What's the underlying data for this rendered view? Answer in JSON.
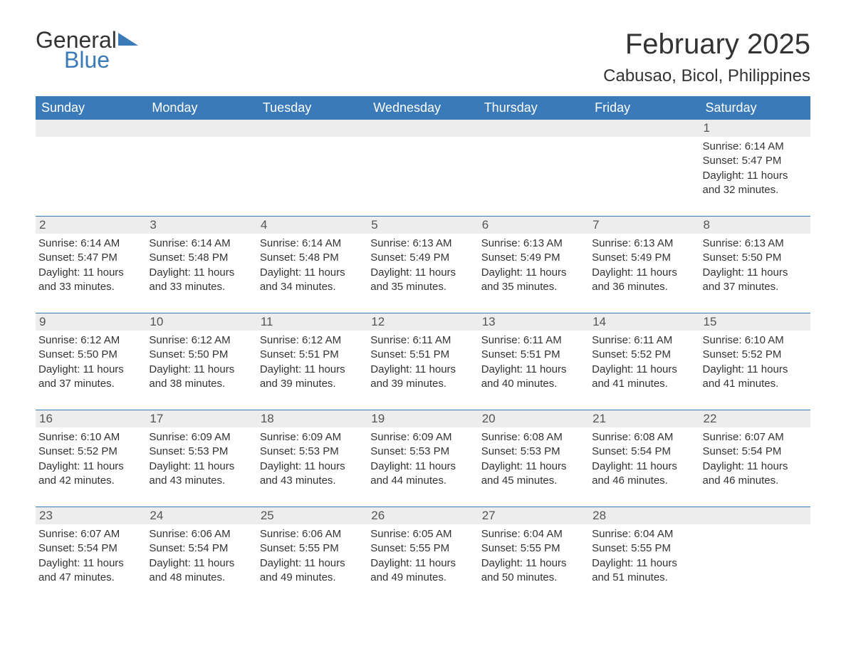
{
  "logo": {
    "line1": "General",
    "line2": "Blue"
  },
  "title": "February 2025",
  "location": "Cabusao, Bicol, Philippines",
  "colors": {
    "header_band": "#3b7ab8",
    "day_band": "#ededed",
    "text": "#333333",
    "background": "#ffffff"
  },
  "weekdays": [
    "Sunday",
    "Monday",
    "Tuesday",
    "Wednesday",
    "Thursday",
    "Friday",
    "Saturday"
  ],
  "weeks": [
    [
      {
        "day": "",
        "sunrise": "",
        "sunset": "",
        "daylight": ""
      },
      {
        "day": "",
        "sunrise": "",
        "sunset": "",
        "daylight": ""
      },
      {
        "day": "",
        "sunrise": "",
        "sunset": "",
        "daylight": ""
      },
      {
        "day": "",
        "sunrise": "",
        "sunset": "",
        "daylight": ""
      },
      {
        "day": "",
        "sunrise": "",
        "sunset": "",
        "daylight": ""
      },
      {
        "day": "",
        "sunrise": "",
        "sunset": "",
        "daylight": ""
      },
      {
        "day": "1",
        "sunrise": "Sunrise: 6:14 AM",
        "sunset": "Sunset: 5:47 PM",
        "daylight": "Daylight: 11 hours and 32 minutes."
      }
    ],
    [
      {
        "day": "2",
        "sunrise": "Sunrise: 6:14 AM",
        "sunset": "Sunset: 5:47 PM",
        "daylight": "Daylight: 11 hours and 33 minutes."
      },
      {
        "day": "3",
        "sunrise": "Sunrise: 6:14 AM",
        "sunset": "Sunset: 5:48 PM",
        "daylight": "Daylight: 11 hours and 33 minutes."
      },
      {
        "day": "4",
        "sunrise": "Sunrise: 6:14 AM",
        "sunset": "Sunset: 5:48 PM",
        "daylight": "Daylight: 11 hours and 34 minutes."
      },
      {
        "day": "5",
        "sunrise": "Sunrise: 6:13 AM",
        "sunset": "Sunset: 5:49 PM",
        "daylight": "Daylight: 11 hours and 35 minutes."
      },
      {
        "day": "6",
        "sunrise": "Sunrise: 6:13 AM",
        "sunset": "Sunset: 5:49 PM",
        "daylight": "Daylight: 11 hours and 35 minutes."
      },
      {
        "day": "7",
        "sunrise": "Sunrise: 6:13 AM",
        "sunset": "Sunset: 5:49 PM",
        "daylight": "Daylight: 11 hours and 36 minutes."
      },
      {
        "day": "8",
        "sunrise": "Sunrise: 6:13 AM",
        "sunset": "Sunset: 5:50 PM",
        "daylight": "Daylight: 11 hours and 37 minutes."
      }
    ],
    [
      {
        "day": "9",
        "sunrise": "Sunrise: 6:12 AM",
        "sunset": "Sunset: 5:50 PM",
        "daylight": "Daylight: 11 hours and 37 minutes."
      },
      {
        "day": "10",
        "sunrise": "Sunrise: 6:12 AM",
        "sunset": "Sunset: 5:50 PM",
        "daylight": "Daylight: 11 hours and 38 minutes."
      },
      {
        "day": "11",
        "sunrise": "Sunrise: 6:12 AM",
        "sunset": "Sunset: 5:51 PM",
        "daylight": "Daylight: 11 hours and 39 minutes."
      },
      {
        "day": "12",
        "sunrise": "Sunrise: 6:11 AM",
        "sunset": "Sunset: 5:51 PM",
        "daylight": "Daylight: 11 hours and 39 minutes."
      },
      {
        "day": "13",
        "sunrise": "Sunrise: 6:11 AM",
        "sunset": "Sunset: 5:51 PM",
        "daylight": "Daylight: 11 hours and 40 minutes."
      },
      {
        "day": "14",
        "sunrise": "Sunrise: 6:11 AM",
        "sunset": "Sunset: 5:52 PM",
        "daylight": "Daylight: 11 hours and 41 minutes."
      },
      {
        "day": "15",
        "sunrise": "Sunrise: 6:10 AM",
        "sunset": "Sunset: 5:52 PM",
        "daylight": "Daylight: 11 hours and 41 minutes."
      }
    ],
    [
      {
        "day": "16",
        "sunrise": "Sunrise: 6:10 AM",
        "sunset": "Sunset: 5:52 PM",
        "daylight": "Daylight: 11 hours and 42 minutes."
      },
      {
        "day": "17",
        "sunrise": "Sunrise: 6:09 AM",
        "sunset": "Sunset: 5:53 PM",
        "daylight": "Daylight: 11 hours and 43 minutes."
      },
      {
        "day": "18",
        "sunrise": "Sunrise: 6:09 AM",
        "sunset": "Sunset: 5:53 PM",
        "daylight": "Daylight: 11 hours and 43 minutes."
      },
      {
        "day": "19",
        "sunrise": "Sunrise: 6:09 AM",
        "sunset": "Sunset: 5:53 PM",
        "daylight": "Daylight: 11 hours and 44 minutes."
      },
      {
        "day": "20",
        "sunrise": "Sunrise: 6:08 AM",
        "sunset": "Sunset: 5:53 PM",
        "daylight": "Daylight: 11 hours and 45 minutes."
      },
      {
        "day": "21",
        "sunrise": "Sunrise: 6:08 AM",
        "sunset": "Sunset: 5:54 PM",
        "daylight": "Daylight: 11 hours and 46 minutes."
      },
      {
        "day": "22",
        "sunrise": "Sunrise: 6:07 AM",
        "sunset": "Sunset: 5:54 PM",
        "daylight": "Daylight: 11 hours and 46 minutes."
      }
    ],
    [
      {
        "day": "23",
        "sunrise": "Sunrise: 6:07 AM",
        "sunset": "Sunset: 5:54 PM",
        "daylight": "Daylight: 11 hours and 47 minutes."
      },
      {
        "day": "24",
        "sunrise": "Sunrise: 6:06 AM",
        "sunset": "Sunset: 5:54 PM",
        "daylight": "Daylight: 11 hours and 48 minutes."
      },
      {
        "day": "25",
        "sunrise": "Sunrise: 6:06 AM",
        "sunset": "Sunset: 5:55 PM",
        "daylight": "Daylight: 11 hours and 49 minutes."
      },
      {
        "day": "26",
        "sunrise": "Sunrise: 6:05 AM",
        "sunset": "Sunset: 5:55 PM",
        "daylight": "Daylight: 11 hours and 49 minutes."
      },
      {
        "day": "27",
        "sunrise": "Sunrise: 6:04 AM",
        "sunset": "Sunset: 5:55 PM",
        "daylight": "Daylight: 11 hours and 50 minutes."
      },
      {
        "day": "28",
        "sunrise": "Sunrise: 6:04 AM",
        "sunset": "Sunset: 5:55 PM",
        "daylight": "Daylight: 11 hours and 51 minutes."
      },
      {
        "day": "",
        "sunrise": "",
        "sunset": "",
        "daylight": ""
      }
    ]
  ]
}
